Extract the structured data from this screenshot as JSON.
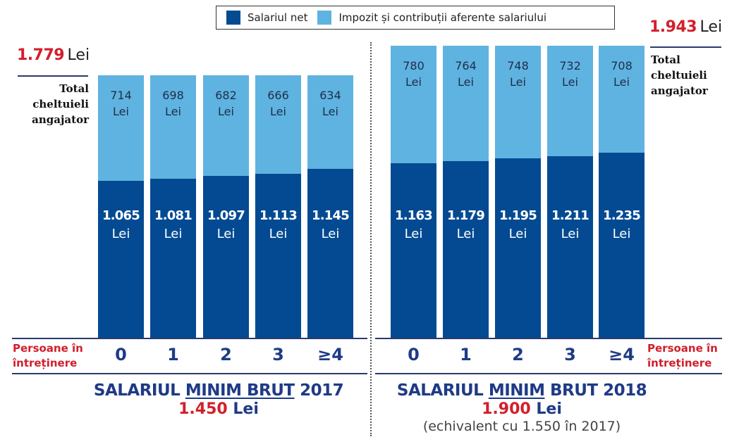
{
  "legend": {
    "items": [
      {
        "label": "Salariul net",
        "color": "#034a92"
      },
      {
        "label": "Impozit și contribuții aferente salariului",
        "color": "#5fb3e0"
      }
    ]
  },
  "labels": {
    "total_label_lines": [
      "Total",
      "cheltuieli",
      "angajator"
    ],
    "dependents_label_lines": [
      "Persoane în",
      "întreținere"
    ],
    "unit": "Lei"
  },
  "groups": [
    {
      "id": "2017",
      "total_value": "1.779",
      "total_unit": "Lei",
      "title_pre": "SALARIUL ",
      "title_underlined": "MINIM BRUT",
      "title_mid": "",
      "title_post": " 2017",
      "gross_value": "1.450",
      "gross_unit": "Lei",
      "note": ""
    },
    {
      "id": "2018",
      "total_value": "1.943",
      "total_unit": "Lei",
      "title_pre": "SALARIUL ",
      "title_underlined": "MINIM",
      "title_mid": " BRUT",
      "title_post": " 2018",
      "gross_value": "1.900",
      "gross_unit": "Lei",
      "note": "(echivalent cu 1.550 în 2017)"
    }
  ],
  "chart_data": [
    {
      "type": "bar",
      "stacked": true,
      "title": "SALARIUL MINIM BRUT 2017 — 1.450 Lei",
      "xlabel": "Persoane în întreținere",
      "ylabel": "",
      "total": 1779,
      "total_label": "1.779 Lei — Total cheltuieli angajator",
      "categories": [
        "0",
        "1",
        "2",
        "3",
        "≥4"
      ],
      "series": [
        {
          "name": "Salariul net",
          "values": [
            1065,
            1081,
            1097,
            1113,
            1145
          ],
          "labels": [
            "1.065",
            "1.081",
            "1.097",
            "1.113",
            "1.145"
          ]
        },
        {
          "name": "Impozit și contribuții aferente salariului",
          "values": [
            714,
            698,
            682,
            666,
            634
          ],
          "labels": [
            "714",
            "698",
            "682",
            "666",
            "634"
          ]
        }
      ],
      "legend": "top"
    },
    {
      "type": "bar",
      "stacked": true,
      "title": "SALARIUL MINIM BRUT 2018 — 1.900 Lei (echivalent cu 1.550 în 2017)",
      "xlabel": "Persoane în întreținere",
      "ylabel": "",
      "total": 1943,
      "total_label": "1.943 Lei — Total cheltuieli angajator",
      "categories": [
        "0",
        "1",
        "2",
        "3",
        "≥4"
      ],
      "series": [
        {
          "name": "Salariul net",
          "values": [
            1163,
            1179,
            1195,
            1211,
            1235
          ],
          "labels": [
            "1.163",
            "1.179",
            "1.195",
            "1.211",
            "1.235"
          ]
        },
        {
          "name": "Impozit și contribuții aferente salariului",
          "values": [
            780,
            764,
            748,
            732,
            708
          ],
          "labels": [
            "780",
            "764",
            "748",
            "732",
            "708"
          ]
        }
      ],
      "legend": "top"
    }
  ]
}
